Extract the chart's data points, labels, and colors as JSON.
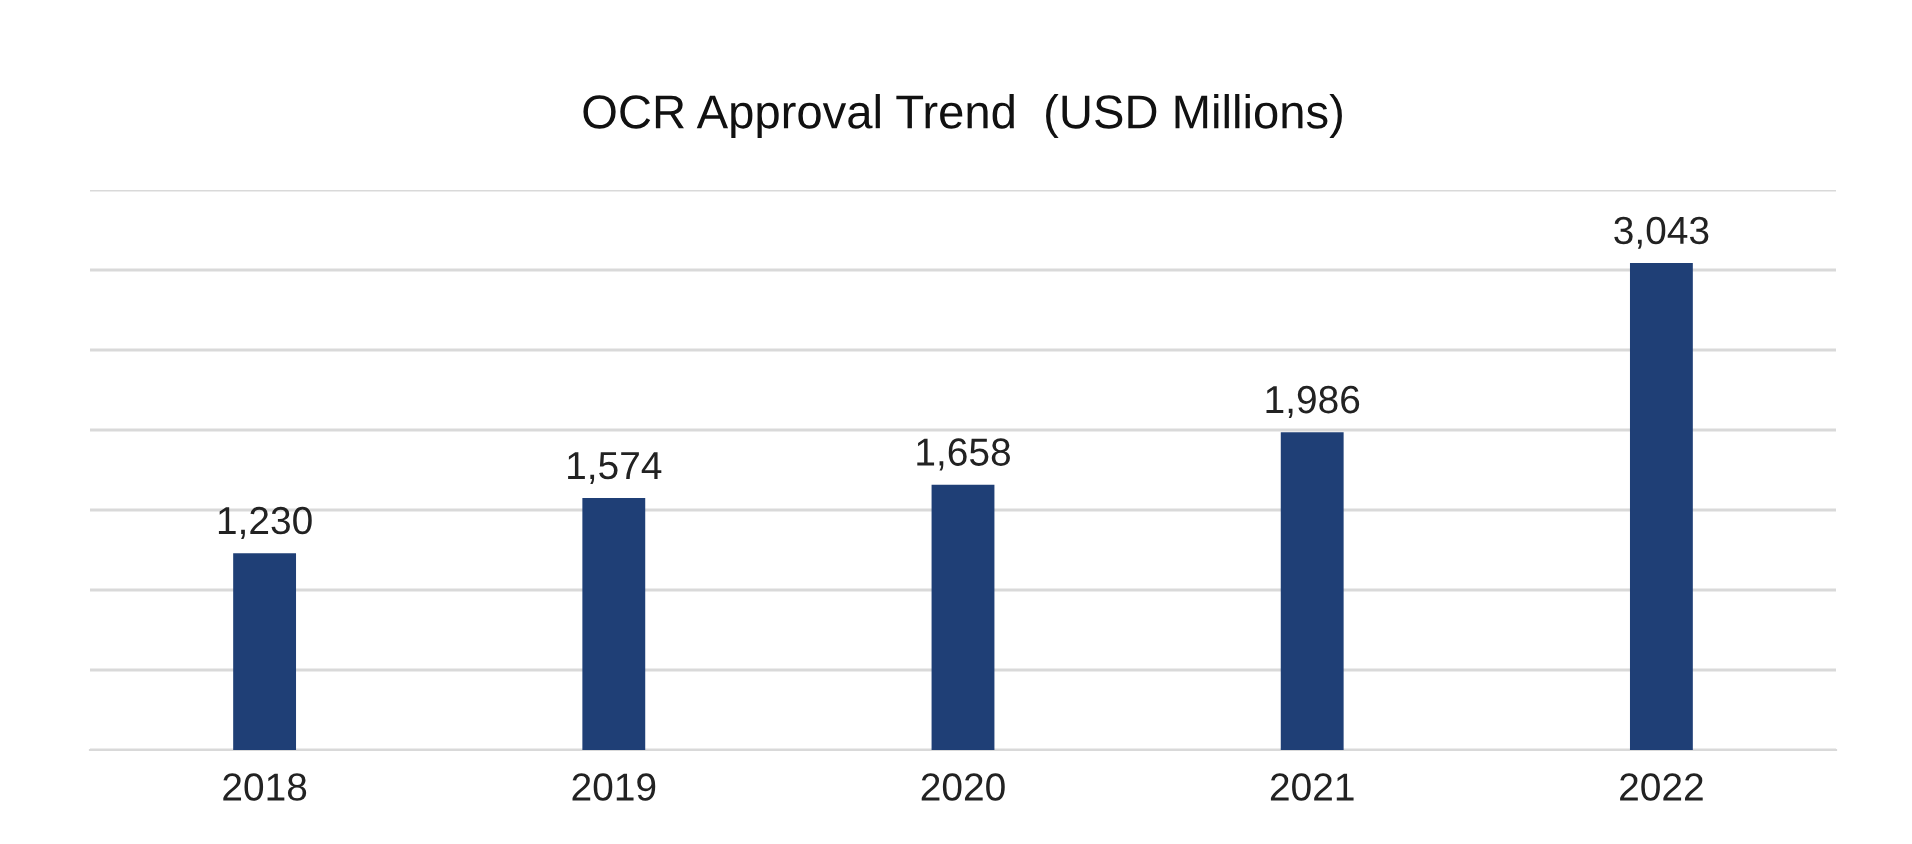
{
  "chart_data": {
    "type": "bar",
    "title": "OCR Approval Trend  (USD Millions)",
    "categories": [
      "2018",
      "2019",
      "2020",
      "2021",
      "2022"
    ],
    "values": [
      1230,
      1574,
      1658,
      1986,
      3043
    ],
    "color": "#1f3f76",
    "value_labels": [
      "1,230",
      "1,574",
      "1,658",
      "1,986",
      "3,043"
    ],
    "grid": "y",
    "tick_labels": "x"
  }
}
